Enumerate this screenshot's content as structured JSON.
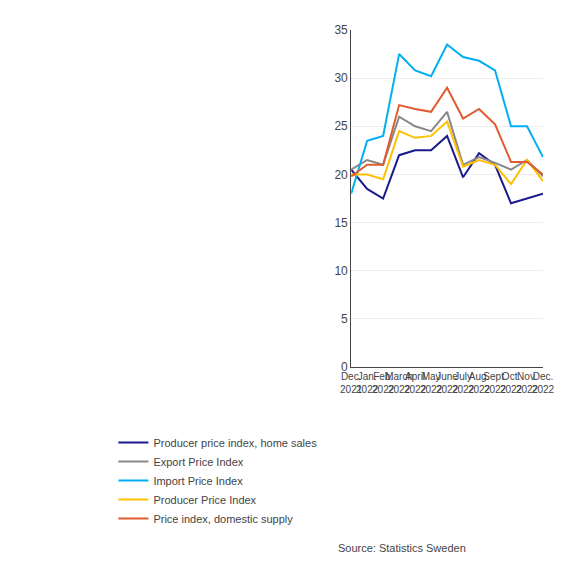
{
  "chart_data": {
    "type": "line",
    "categories": [
      "Dec.\n2021",
      "Jan.\n2022",
      "Feb.\n2022",
      "March\n2022",
      "April\n2022",
      "May\n2022",
      "June\n2022",
      "July\n2022",
      "Aug.\n2022",
      "Sept.\n2022",
      "Oct.\n2022",
      "Nov.\n2022",
      "Dec.\n2022"
    ],
    "series": [
      {
        "name": "Producer price index, home sales",
        "color": "#1a1a8c",
        "values": [
          20.5,
          18.5,
          17.5,
          22.0,
          22.5,
          22.5,
          24.0,
          19.7,
          22.2,
          21.0,
          17.0,
          17.5,
          18.0
        ]
      },
      {
        "name": "Export Price Index",
        "color": "#888888",
        "values": [
          20.5,
          21.5,
          21.0,
          26.0,
          25.0,
          24.5,
          26.5,
          21.0,
          21.8,
          21.2,
          20.5,
          21.5,
          19.8
        ]
      },
      {
        "name": "Import Price Index",
        "color": "#00b0f0",
        "values": [
          18.0,
          23.5,
          24.0,
          32.5,
          30.8,
          30.2,
          33.5,
          32.2,
          31.8,
          30.8,
          25.0,
          25.0,
          21.8
        ]
      },
      {
        "name": "Producer Price Index",
        "color": "#ffc000",
        "values": [
          20.0,
          20.0,
          19.5,
          24.5,
          23.8,
          24.0,
          25.5,
          20.8,
          21.5,
          21.0,
          19.0,
          21.5,
          19.3
        ]
      },
      {
        "name": "Price index, domestic supply",
        "color": "#e05c30",
        "values": [
          19.8,
          21.0,
          21.0,
          27.2,
          26.8,
          26.5,
          29.0,
          25.8,
          26.8,
          25.2,
          21.3,
          21.3,
          20.0
        ]
      }
    ],
    "ylim": [
      0,
      35
    ],
    "yticks": [
      0,
      5,
      10,
      15,
      20,
      25,
      30,
      35
    ],
    "grid": true,
    "legend": "bottom",
    "annotations": [
      "Source: Statistics Sweden"
    ]
  }
}
